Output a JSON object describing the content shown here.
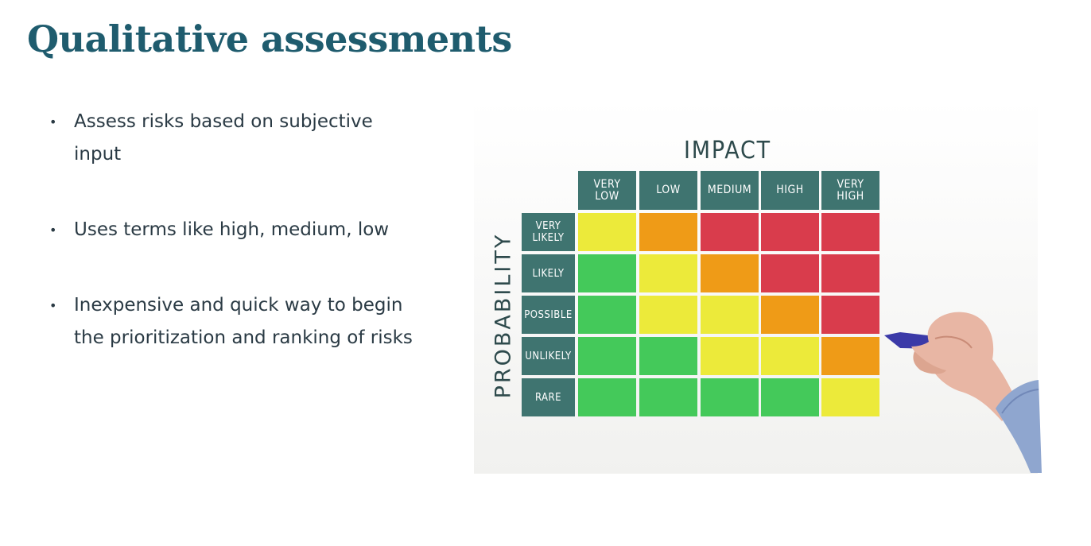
{
  "slide": {
    "title": "Qualitative assessments",
    "bullets": [
      "Assess risks based on subjective input",
      "Uses terms like high, medium, low",
      "Inexpensive and quick way to begin the prioritization and ranking of risks"
    ]
  },
  "matrix": {
    "impact_label": "IMPACT",
    "probability_label": "PROBABILITY",
    "impact_levels": [
      "Very\nLow",
      "Low",
      "Medium",
      "High",
      "Very\nHigh"
    ],
    "probability_levels": [
      "Very\nLikely",
      "Likely",
      "Possible",
      "Unlikely",
      "Rare"
    ],
    "colors": {
      "header": "#3f7470",
      "green": "#44c95a",
      "yellow": "#ecea3a",
      "orange": "#ef9b17",
      "red": "#d93c4c"
    },
    "grid": [
      [
        "yellow",
        "orange",
        "red",
        "red",
        "red"
      ],
      [
        "green",
        "yellow",
        "orange",
        "red",
        "red"
      ],
      [
        "green",
        "yellow",
        "yellow",
        "orange",
        "red"
      ],
      [
        "green",
        "green",
        "yellow",
        "yellow",
        "orange"
      ],
      [
        "green",
        "green",
        "green",
        "green",
        "yellow"
      ]
    ]
  }
}
